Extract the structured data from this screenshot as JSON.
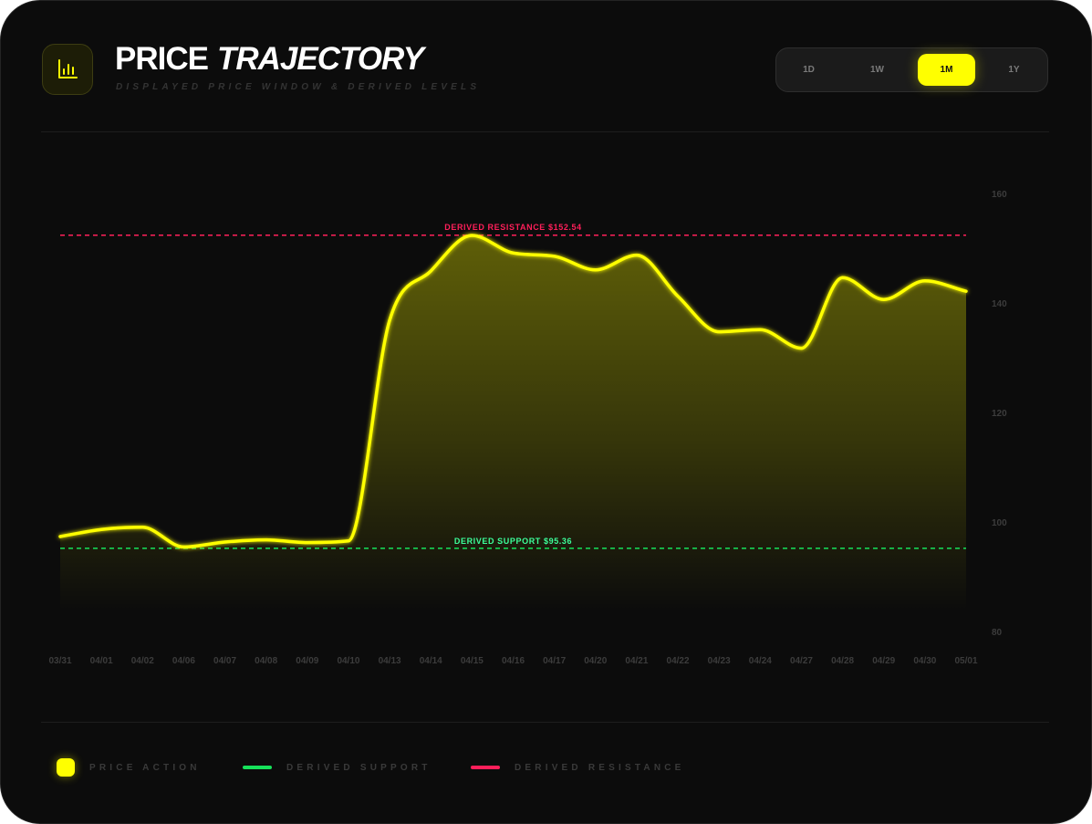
{
  "header": {
    "title_main": "PRICE",
    "title_italic": "TRAJECTORY",
    "subtitle": "DISPLAYED PRICE WINDOW & DERIVED LEVELS",
    "icon": "bar-chart-icon"
  },
  "range_selector": {
    "options": [
      "1D",
      "1W",
      "1M",
      "1Y"
    ],
    "selected": "1M"
  },
  "legend": {
    "price": "PRICE ACTION",
    "support": "DERIVED SUPPORT",
    "resistance": "DERIVED RESISTANCE"
  },
  "colors": {
    "price": "#ffff00",
    "support": "#16e25a",
    "resistance": "#ff1f5a",
    "support_label": "#3cff9a"
  },
  "chart_data": {
    "type": "area",
    "title": "",
    "categories": [
      "03/31",
      "04/01",
      "04/02",
      "04/06",
      "04/07",
      "04/08",
      "04/09",
      "04/10",
      "04/13",
      "04/14",
      "04/15",
      "04/16",
      "04/17",
      "04/20",
      "04/21",
      "04/22",
      "04/23",
      "04/24",
      "04/27",
      "04/28",
      "04/29",
      "04/30",
      "05/01"
    ],
    "series": [
      {
        "name": "PRICE ACTION",
        "values": [
          97.5,
          98.8,
          99.2,
          95.6,
          96.5,
          96.9,
          96.4,
          96.7,
          137.0,
          146.0,
          152.5,
          149.3,
          148.7,
          146.2,
          148.9,
          141.4,
          134.9,
          135.3,
          131.9,
          144.8,
          140.8,
          144.2,
          142.3
        ]
      }
    ],
    "y_axis": {
      "ticks": [
        80,
        100,
        120,
        140,
        160
      ],
      "range": [
        80,
        160
      ]
    },
    "levels": {
      "resistance": {
        "value": 152.54,
        "label": "DERIVED RESISTANCE $152.54"
      },
      "support": {
        "value": 95.36,
        "label": "DERIVED SUPPORT $95.36"
      }
    },
    "grid": false,
    "legend_position": "bottom-left"
  }
}
